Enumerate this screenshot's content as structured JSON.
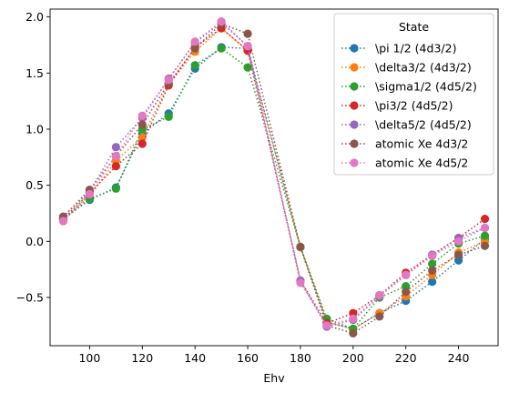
{
  "chart_data": {
    "type": "line",
    "title": "",
    "xlabel": "Ehv",
    "ylabel": "",
    "xlim": [
      85,
      255
    ],
    "ylim": [
      -0.93,
      2.07
    ],
    "xticks": [
      100,
      120,
      140,
      160,
      180,
      200,
      220,
      240
    ],
    "yticks": [
      -0.5,
      0.0,
      0.5,
      1.0,
      1.5,
      2.0
    ],
    "xtick_labels": [
      "100",
      "120",
      "140",
      "160",
      "180",
      "200",
      "220",
      "240"
    ],
    "ytick_labels": [
      "−0.5",
      "0.0",
      "0.5",
      "1.0",
      "1.5",
      "2.0"
    ],
    "grid": false,
    "line_style": "dotted",
    "marker": "circle",
    "legend": {
      "title": "State",
      "placement": "top-right"
    },
    "x": [
      90,
      100,
      110,
      120,
      130,
      140,
      150,
      160,
      180,
      190,
      200,
      210,
      220,
      230,
      240,
      250
    ],
    "series": [
      {
        "name": "\\pi 1/2 (4d3/2)",
        "color": "#1f77b4",
        "values": [
          0.2,
          0.37,
          0.48,
          0.96,
          1.14,
          1.54,
          1.73,
          1.72,
          -0.05,
          -0.72,
          -0.78,
          -0.64,
          -0.53,
          -0.36,
          -0.17,
          0.02
        ]
      },
      {
        "name": "\\delta3/2 (4d3/2)",
        "color": "#ff7f0e",
        "values": [
          0.2,
          0.4,
          0.72,
          0.93,
          1.4,
          1.69,
          1.9,
          1.7,
          -0.05,
          -0.72,
          -0.78,
          -0.64,
          -0.49,
          -0.3,
          -0.1,
          0.0
        ]
      },
      {
        "name": "\\sigma1/2 (4d5/2)",
        "color": "#2ca02c",
        "values": [
          0.2,
          0.38,
          0.47,
          1.0,
          1.11,
          1.57,
          1.72,
          1.55,
          -0.05,
          -0.69,
          -0.78,
          -0.5,
          -0.4,
          -0.2,
          -0.02,
          0.05
        ]
      },
      {
        "name": "\\pi3/2 (4d5/2)",
        "color": "#d62728",
        "values": [
          0.2,
          0.43,
          0.67,
          0.87,
          1.39,
          1.73,
          1.9,
          1.7,
          -0.35,
          -0.73,
          -0.64,
          -0.48,
          -0.28,
          -0.12,
          0.03,
          0.2
        ]
      },
      {
        "name": "\\delta5/2 (4d5/2)",
        "color": "#9467bd",
        "values": [
          0.22,
          0.44,
          0.84,
          1.1,
          1.45,
          1.77,
          1.95,
          1.74,
          -0.35,
          -0.76,
          -0.7,
          -0.49,
          -0.3,
          -0.12,
          0.03,
          0.12
        ]
      },
      {
        "name": "atomic Xe 4d3/2",
        "color": "#8c564b",
        "values": [
          0.22,
          0.46,
          0.76,
          1.04,
          1.41,
          1.72,
          1.94,
          1.85,
          -0.05,
          -0.75,
          -0.82,
          -0.67,
          -0.45,
          -0.26,
          -0.12,
          -0.04
        ]
      },
      {
        "name": "atomic Xe 4d5/2",
        "color": "#e377c2",
        "values": [
          0.18,
          0.42,
          0.76,
          1.12,
          1.44,
          1.78,
          1.96,
          1.74,
          -0.37,
          -0.75,
          -0.69,
          -0.48,
          -0.3,
          -0.13,
          0.0,
          0.12
        ]
      }
    ]
  }
}
